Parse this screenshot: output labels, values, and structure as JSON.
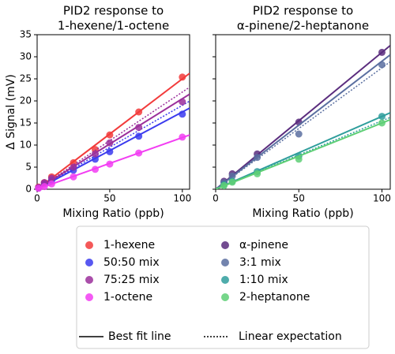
{
  "chart_data": [
    {
      "type": "scatter",
      "title": [
        "PID2 response to",
        "1-hexene/1-octene"
      ],
      "xlabel": "Mixing Ratio (ppb)",
      "ylabel": "Δ Signal (mV)",
      "x": [
        1,
        5,
        10,
        25,
        40,
        50,
        70,
        100
      ],
      "xlim": [
        0,
        105
      ],
      "xticks": [
        0,
        50,
        100
      ],
      "ylim": [
        0,
        35
      ],
      "yticks": [
        0,
        5,
        10,
        15,
        20,
        25,
        30,
        35
      ],
      "series": [
        {
          "name": "1-hexene",
          "color": "#f23b3b",
          "values": [
            0.5,
            1.5,
            2.8,
            6,
            9,
            12.3,
            17.5,
            25.4
          ],
          "fit_slope": 0.25
        },
        {
          "name": "50:50 mix",
          "color": "#3b3bee",
          "values": [
            0.3,
            1.2,
            2,
            4.3,
            6.8,
            8.5,
            12,
            17
          ],
          "fit_slope": 0.175,
          "expected_slope": 0.19
        },
        {
          "name": "75:25 mix",
          "color": "#9b2f9b",
          "values": [
            0.4,
            1.5,
            2.5,
            5,
            8,
            10.5,
            14,
            19.8
          ],
          "fit_slope": 0.205,
          "expected_slope": 0.22
        },
        {
          "name": "1-octene",
          "color": "#f23df2",
          "values": [
            0.2,
            0.6,
            1.2,
            2.8,
            4.5,
            5.7,
            8.2,
            11.8
          ],
          "fit_slope": 0.117
        }
      ]
    },
    {
      "type": "scatter",
      "title": [
        "PID2 response to",
        "α-pinene/2-heptanone"
      ],
      "xlabel": "Mixing Ratio (ppb)",
      "x": [
        5,
        10,
        25,
        50,
        100
      ],
      "xlim": [
        0,
        105
      ],
      "xticks": [
        0,
        50,
        100
      ],
      "ylim": [
        0,
        35
      ],
      "yticks": [
        0,
        5,
        10,
        15,
        20,
        25,
        30,
        35
      ],
      "series": [
        {
          "name": "α-pinene",
          "color": "#5b2d7e",
          "values": [
            1.8,
            3.5,
            8,
            15.2,
            31
          ],
          "fit_slope": 0.31
        },
        {
          "name": "3:1 mix",
          "color": "#5a6fa0",
          "values": [
            1.5,
            3,
            7.2,
            12.5,
            28.2
          ],
          "fit_slope": 0.29,
          "expected_slope": 0.275
        },
        {
          "name": "1:10 mix",
          "color": "#2f9e9c",
          "values": [
            1,
            1.8,
            4,
            7.5,
            16.5
          ],
          "fit_slope": 0.165,
          "expected_slope": 0.155
        },
        {
          "name": "2-heptanone",
          "color": "#5ecf75",
          "values": [
            0.8,
            1.6,
            3.5,
            6.8,
            15
          ],
          "fit_slope": 0.15
        }
      ]
    }
  ],
  "legend_lines": [
    "Best fit line",
    "Linear expectation"
  ]
}
